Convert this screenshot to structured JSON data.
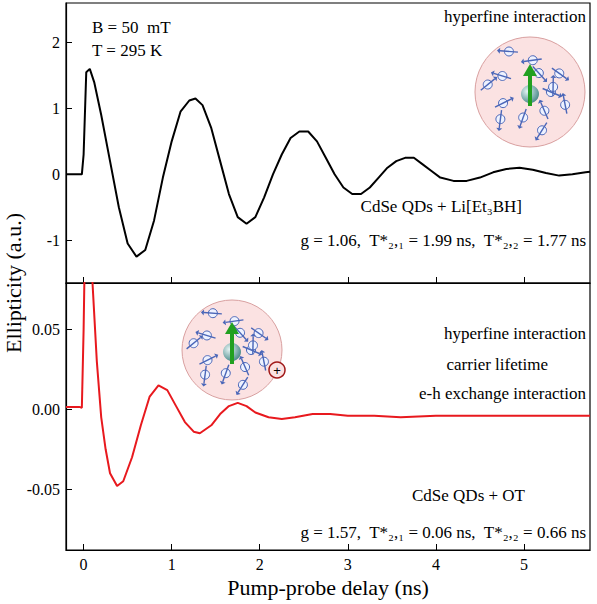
{
  "chart_data": {
    "type": "line",
    "xlabel": "Pump-probe delay (ns)",
    "ylabel": "Ellipticity (a.u.)",
    "xlim": [
      -0.2,
      5.75
    ],
    "xticks": [
      0,
      1,
      2,
      3,
      4,
      5
    ],
    "grid": false,
    "panels": [
      {
        "ylim": [
          -1.65,
          2.6
        ],
        "yticks": [
          -1,
          0,
          1,
          2
        ],
        "tick_labels": "y",
        "annotations": [
          "B = 50  mT",
          "T = 295 K",
          "hyperfine interaction",
          "CdSe QDs + Li[Et₃BH]",
          "g = 1.06,  T*₂,₁ = 1.99 ns,  T*₂,₂ = 1.77 ns"
        ],
        "series": [
          {
            "color": "#000000",
            "x": [
              -0.2,
              -0.02,
              0.0,
              0.03,
              0.07,
              0.12,
              0.2,
              0.3,
              0.4,
              0.5,
              0.6,
              0.7,
              0.8,
              0.9,
              1.0,
              1.1,
              1.2,
              1.27,
              1.35,
              1.45,
              1.55,
              1.65,
              1.75,
              1.85,
              1.95,
              2.05,
              2.15,
              2.25,
              2.35,
              2.45,
              2.55,
              2.65,
              2.75,
              2.85,
              2.95,
              3.05,
              3.15,
              3.25,
              3.35,
              3.45,
              3.55,
              3.65,
              3.75,
              3.85,
              3.95,
              4.05,
              4.2,
              4.35,
              4.5,
              4.65,
              4.8,
              4.95,
              5.1,
              5.25,
              5.4,
              5.55,
              5.7,
              5.75
            ],
            "values": [
              0,
              0,
              0.3,
              1.55,
              1.6,
              1.4,
              0.9,
              0.2,
              -0.5,
              -1.05,
              -1.25,
              -1.15,
              -0.7,
              -0.05,
              0.5,
              0.95,
              1.12,
              1.15,
              1.05,
              0.7,
              0.2,
              -0.3,
              -0.65,
              -0.75,
              -0.65,
              -0.35,
              0.0,
              0.3,
              0.55,
              0.65,
              0.65,
              0.5,
              0.25,
              0.0,
              -0.2,
              -0.3,
              -0.3,
              -0.2,
              -0.05,
              0.1,
              0.2,
              0.25,
              0.25,
              0.15,
              0.05,
              -0.05,
              -0.1,
              -0.1,
              -0.05,
              0.03,
              0.08,
              0.1,
              0.07,
              0.02,
              -0.02,
              0.0,
              0.03,
              0.04
            ]
          }
        ]
      },
      {
        "ylim": [
          -0.088,
          0.079
        ],
        "yticks": [
          -0.05,
          {
            "value": 0,
            "label": "0.00"
          },
          0.05
        ],
        "annotations": [
          "hyperfine interaction",
          "carrier lifetime",
          "e-h exchange interaction",
          "CdSe QDs + OT",
          "g = 1.57,  T*₂,₁ = 0.06 ns,  T*₂,₂ = 0.66 ns",
          "+"
        ],
        "series": [
          {
            "color": "#e8191e",
            "x": [
              -0.2,
              -0.05,
              -0.02,
              0.0,
              0.02,
              0.05,
              0.1,
              0.15,
              0.2,
              0.25,
              0.3,
              0.38,
              0.45,
              0.55,
              0.65,
              0.75,
              0.85,
              0.95,
              1.05,
              1.15,
              1.25,
              1.32,
              1.45,
              1.55,
              1.65,
              1.75,
              1.85,
              1.95,
              2.1,
              2.25,
              2.4,
              2.6,
              2.8,
              3.0,
              3.3,
              3.6,
              4.0,
              4.5,
              5.0,
              5.5,
              5.75
            ],
            "values": [
              0.0015,
              0.0015,
              0.001,
              0.05,
              0.12,
              0.15,
              0.08,
              0.03,
              -0.005,
              -0.025,
              -0.04,
              -0.048,
              -0.045,
              -0.03,
              -0.01,
              0.008,
              0.015,
              0.012,
              0.002,
              -0.008,
              -0.014,
              -0.015,
              -0.01,
              -0.003,
              0.002,
              0.004,
              0.002,
              -0.002,
              -0.005,
              -0.006,
              -0.005,
              -0.003,
              -0.003,
              -0.004,
              -0.004,
              -0.005,
              -0.004,
              -0.004,
              -0.004,
              -0.004,
              -0.004
            ]
          }
        ]
      }
    ]
  }
}
